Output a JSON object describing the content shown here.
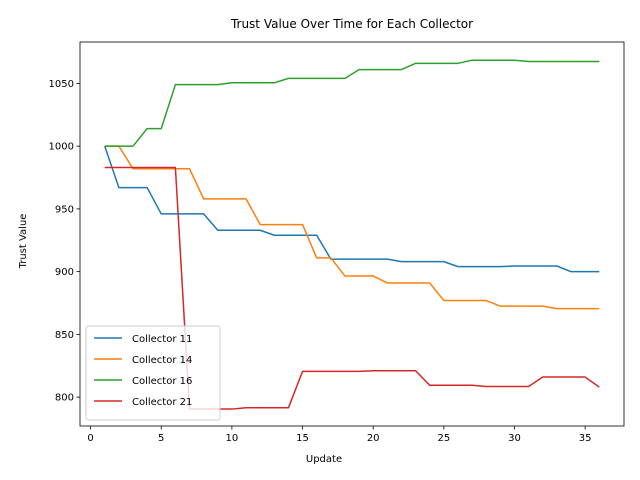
{
  "chart_data": {
    "type": "line",
    "title": "Trust Value Over Time for Each Collector",
    "xlabel": "Update",
    "ylabel": "Trust Value",
    "xlim": [
      -0.75,
      37.75
    ],
    "ylim": [
      777,
      1083
    ],
    "xticks": [
      0,
      5,
      10,
      15,
      20,
      25,
      30,
      35
    ],
    "yticks": [
      800,
      850,
      900,
      950,
      1000,
      1050
    ],
    "grid": false,
    "legend_position": "lower-left",
    "series": [
      {
        "name": "Collector 11",
        "color": "#1f77b4",
        "x": [
          1,
          2,
          3,
          4,
          5,
          6,
          7,
          8,
          9,
          10,
          11,
          12,
          13,
          14,
          15,
          16,
          17,
          18,
          19,
          20,
          21,
          22,
          23,
          24,
          25,
          26,
          27,
          28,
          29,
          30,
          31,
          32,
          33,
          34,
          35,
          36
        ],
        "values": [
          1000,
          967,
          967,
          967,
          946,
          946,
          946,
          946,
          933,
          933,
          933,
          933,
          929,
          929,
          929,
          929,
          910,
          910,
          910,
          910,
          910,
          908,
          908,
          908,
          908,
          904,
          904,
          904,
          904,
          904.5,
          904.5,
          904.5,
          904.5,
          900,
          900,
          900
        ]
      },
      {
        "name": "Collector 14",
        "color": "#ff7f0e",
        "x": [
          1,
          2,
          3,
          4,
          5,
          6,
          7,
          8,
          9,
          10,
          11,
          12,
          13,
          14,
          15,
          16,
          17,
          18,
          19,
          20,
          21,
          22,
          23,
          24,
          25,
          26,
          27,
          28,
          29,
          30,
          31,
          32,
          33,
          34,
          35,
          36
        ],
        "values": [
          1000,
          1000,
          982,
          982,
          982,
          982,
          982,
          958,
          958,
          958,
          958,
          937.5,
          937.5,
          937.5,
          937.5,
          911,
          911,
          896.5,
          896.5,
          896.5,
          891,
          891,
          891,
          891,
          877,
          877,
          877,
          877,
          872.5,
          872.5,
          872.5,
          872.5,
          870.5,
          870.5,
          870.5,
          870.5
        ]
      },
      {
        "name": "Collector 16",
        "color": "#2ca02c",
        "x": [
          1,
          2,
          3,
          4,
          5,
          6,
          7,
          8,
          9,
          10,
          11,
          12,
          13,
          14,
          15,
          16,
          17,
          18,
          19,
          20,
          21,
          22,
          23,
          24,
          25,
          26,
          27,
          28,
          29,
          30,
          31,
          32,
          33,
          34,
          35,
          36
        ],
        "values": [
          1000,
          1000,
          1000,
          1014,
          1014,
          1049,
          1049,
          1049,
          1049,
          1050.5,
          1050.5,
          1050.5,
          1050.5,
          1054,
          1054,
          1054,
          1054,
          1054,
          1061,
          1061,
          1061,
          1061,
          1066,
          1066,
          1066,
          1066,
          1068.5,
          1068.5,
          1068.5,
          1068.5,
          1067.5,
          1067.5,
          1067.5,
          1067.5,
          1067.5,
          1067.5
        ]
      },
      {
        "name": "Collector 21",
        "color": "#d62728",
        "x": [
          1,
          2,
          3,
          4,
          5,
          6,
          7,
          8,
          9,
          10,
          11,
          12,
          13,
          14,
          15,
          16,
          17,
          18,
          19,
          20,
          21,
          22,
          23,
          24,
          25,
          26,
          27,
          28,
          29,
          30,
          31,
          32,
          33,
          34,
          35,
          36
        ],
        "values": [
          983,
          983,
          983,
          983,
          983,
          983,
          790.5,
          790.5,
          790.5,
          790.5,
          791.5,
          791.5,
          791.5,
          791.5,
          820.5,
          820.5,
          820.5,
          820.5,
          820.5,
          821,
          821,
          821,
          821,
          809.5,
          809.5,
          809.5,
          809.5,
          808.5,
          808.5,
          808.5,
          808.5,
          816,
          816,
          816,
          816,
          808
        ]
      }
    ]
  }
}
